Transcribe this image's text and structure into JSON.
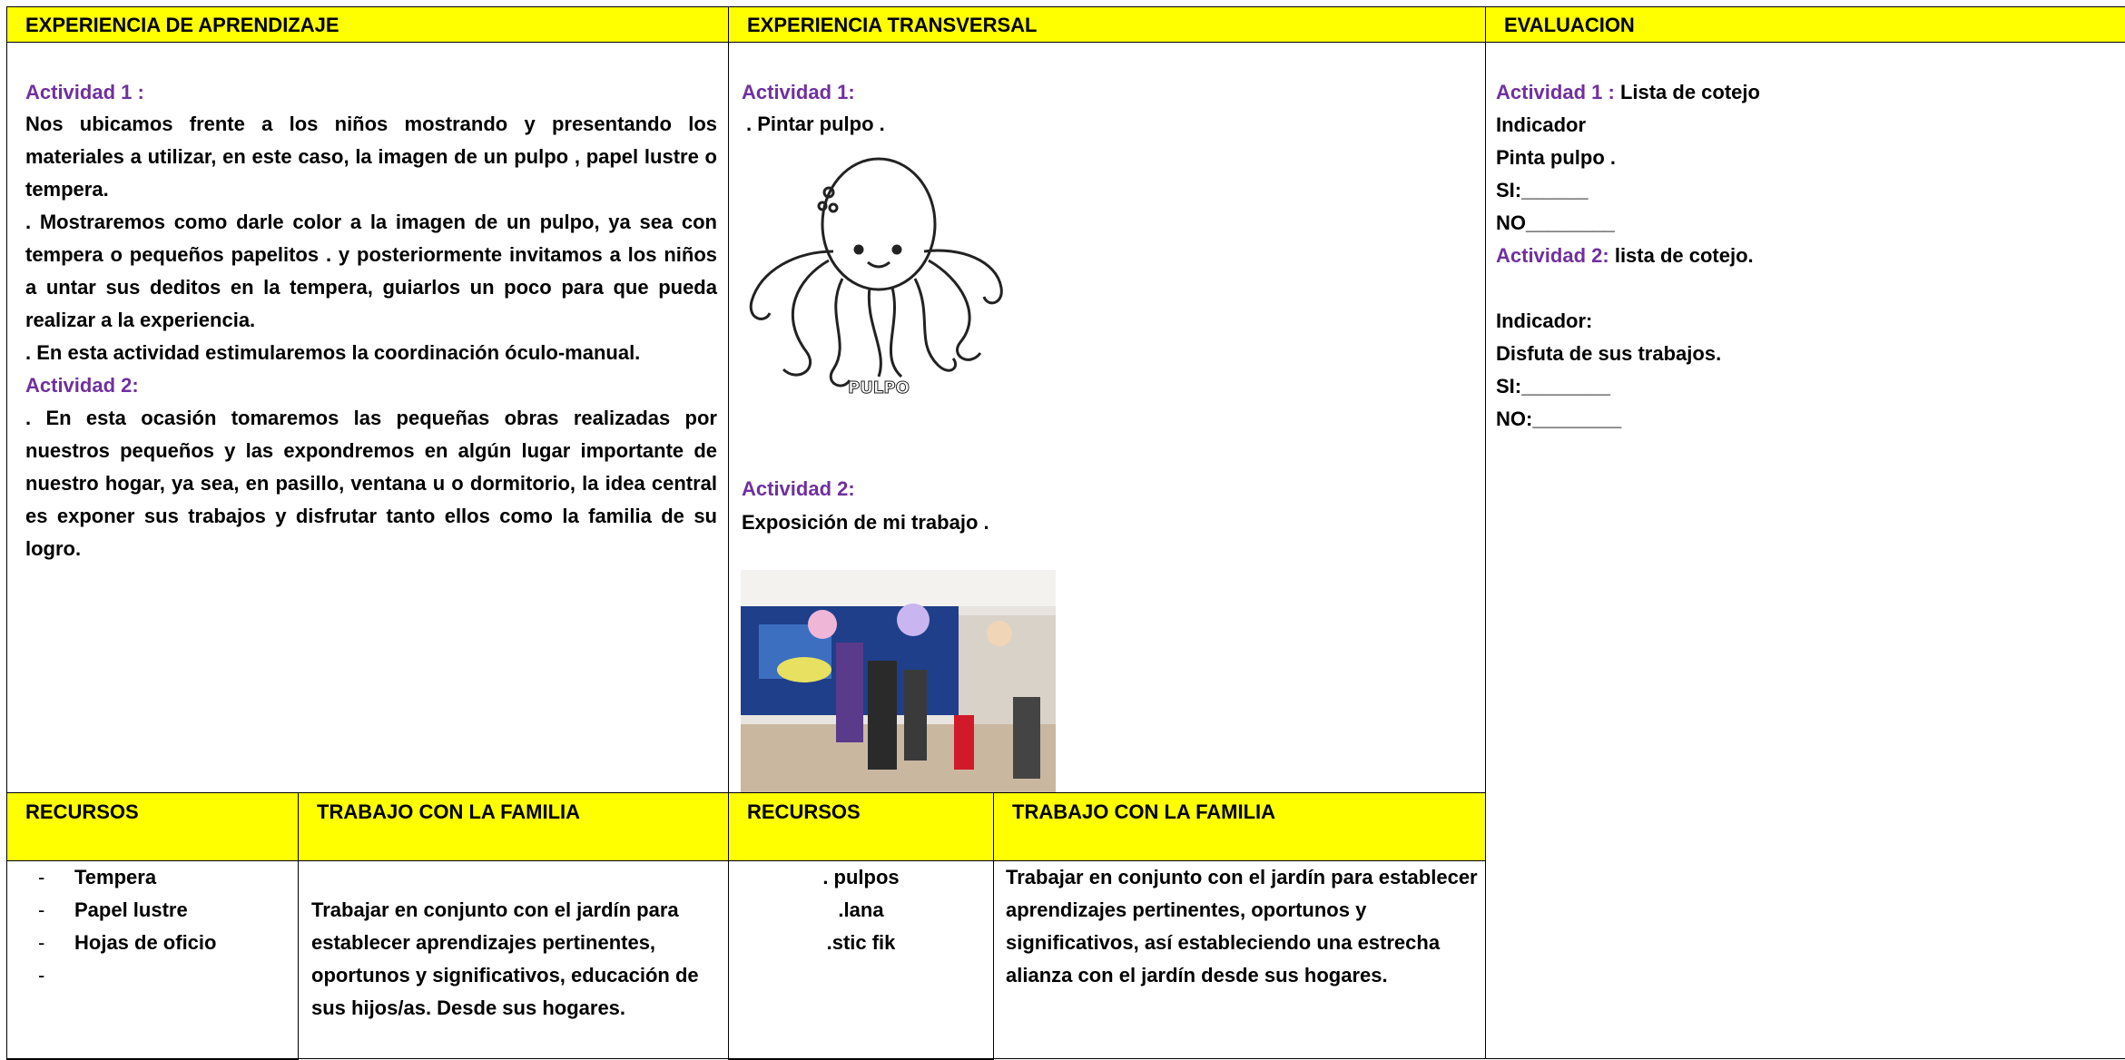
{
  "learning": {
    "title": "EXPERIENCIA DE APRENDIZAJE",
    "activity1_label": "Actividad 1 :",
    "activity1_paragraphs": [
      "Nos ubicamos frente a los niños mostrando y presentando los materiales a utilizar, en este caso, la imagen de un pulpo , papel lustre o tempera.",
      ". Mostraremos como darle color a la imagen de un pulpo, ya sea con tempera o pequeños papelitos . y posteriormente invitamos a los niños a untar sus deditos en la tempera, guiarlos un poco para que pueda realizar a la experiencia.",
      ". En esta actividad estimularemos la coordinación óculo-manual."
    ],
    "activity2_label": "Actividad 2:",
    "activity2_paragraphs": [
      ". En esta ocasión tomaremos las pequeñas obras realizadas por nuestros pequeños y las expondremos en algún lugar importante de nuestro hogar, ya sea, en pasillo, ventana u o dormitorio, la idea central es exponer sus trabajos y disfrutar tanto ellos como la familia de su logro."
    ]
  },
  "transversal": {
    "title": "EXPERIENCIA TRANSVERSAL",
    "activity1_label": "Actividad 1:",
    "activity1_text": ". Pintar pulpo .",
    "image_caption": "PULPO",
    "activity2_label": "Actividad 2:",
    "activity2_text": "Exposición de mi trabajo ."
  },
  "evaluation": {
    "title": "EVALUACION",
    "activity1_label": "Actividad 1 :",
    "activity1_tool": "Lista de cotejo",
    "activity1_lines": [
      "Indicador",
      "Pinta pulpo .",
      "SI:______",
      "NO________"
    ],
    "activity2_label": "Actividad 2:",
    "activity2_tool": "lista de cotejo.",
    "activity2_lines": [
      "Indicador:",
      "Disfuta de sus trabajos.",
      "SI:________",
      "NO:________"
    ]
  },
  "bottom_left": {
    "resources_title": "RECURSOS",
    "family_title": "TRABAJO CON LA FAMILIA",
    "resources": [
      "Tempera",
      "Papel lustre",
      "Hojas de oficio"
    ],
    "family_text": "Trabajar en conjunto con el jardín para establecer aprendizajes pertinentes, oportunos y significativos, educación de sus hijos/as. Desde sus hogares."
  },
  "bottom_middle": {
    "resources_title": "RECURSOS",
    "family_title": "TRABAJO CON LA FAMILIA",
    "resources": [
      ". pulpos",
      ".lana",
      ".stic fik"
    ],
    "family_text": "Trabajar en conjunto con el jardín para establecer aprendizajes pertinentes, oportunos y significativos, así estableciendo una estrecha alianza con el jardín desde sus hogares."
  }
}
